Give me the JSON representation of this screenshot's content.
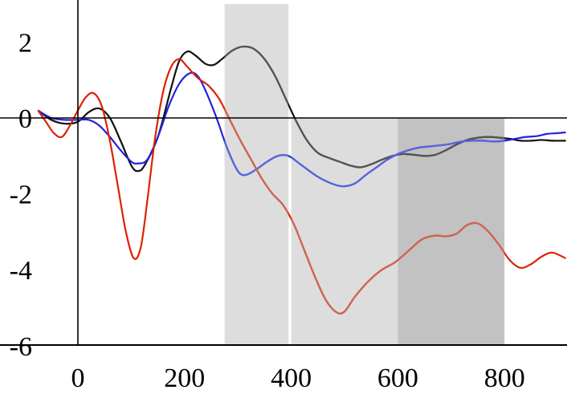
{
  "chart_data": {
    "type": "line",
    "title": "",
    "xlabel": "",
    "ylabel": "",
    "xlim": [
      -75,
      915
    ],
    "ylim": [
      -6,
      3
    ],
    "x_ticks": [
      0,
      200,
      400,
      600,
      800
    ],
    "x_tick_labels": [
      "0",
      "200",
      "400",
      "600",
      "800"
    ],
    "y_ticks": [
      2,
      0,
      -2,
      -4,
      -6
    ],
    "y_tick_labels": [
      "2",
      "0",
      "-2",
      "-4",
      "-6"
    ],
    "grid": false,
    "zero_line": true,
    "shaded_regions": [
      {
        "x0": 275,
        "x1": 395,
        "y0": -6,
        "y1": 3,
        "color": "#dddddd"
      },
      {
        "x0": 400,
        "x1": 600,
        "y0": -6,
        "y1": 0,
        "color": "#dddddd"
      },
      {
        "x0": 600,
        "x1": 800,
        "y0": -6,
        "y1": 0,
        "color": "#c2c2c2"
      }
    ],
    "series": [
      {
        "color": "#111111",
        "shaded_color": "#555555",
        "points": [
          [
            -75,
            0.2
          ],
          [
            -50,
            -0.05
          ],
          [
            -25,
            -0.15
          ],
          [
            0,
            -0.1
          ],
          [
            20,
            0.15
          ],
          [
            40,
            0.25
          ],
          [
            60,
            0.0
          ],
          [
            80,
            -0.6
          ],
          [
            100,
            -1.25
          ],
          [
            112,
            -1.4
          ],
          [
            125,
            -1.25
          ],
          [
            150,
            -0.5
          ],
          [
            175,
            0.8
          ],
          [
            190,
            1.5
          ],
          [
            205,
            1.75
          ],
          [
            220,
            1.65
          ],
          [
            240,
            1.42
          ],
          [
            255,
            1.4
          ],
          [
            270,
            1.55
          ],
          [
            290,
            1.78
          ],
          [
            310,
            1.88
          ],
          [
            330,
            1.82
          ],
          [
            350,
            1.55
          ],
          [
            370,
            1.1
          ],
          [
            390,
            0.5
          ],
          [
            410,
            -0.1
          ],
          [
            430,
            -0.6
          ],
          [
            450,
            -0.92
          ],
          [
            470,
            -1.05
          ],
          [
            490,
            -1.15
          ],
          [
            510,
            -1.25
          ],
          [
            530,
            -1.3
          ],
          [
            550,
            -1.22
          ],
          [
            570,
            -1.1
          ],
          [
            590,
            -1.0
          ],
          [
            610,
            -0.95
          ],
          [
            630,
            -0.97
          ],
          [
            650,
            -1.0
          ],
          [
            670,
            -0.97
          ],
          [
            690,
            -0.85
          ],
          [
            710,
            -0.7
          ],
          [
            730,
            -0.58
          ],
          [
            750,
            -0.52
          ],
          [
            770,
            -0.5
          ],
          [
            790,
            -0.52
          ],
          [
            810,
            -0.55
          ],
          [
            830,
            -0.6
          ],
          [
            850,
            -0.6
          ],
          [
            870,
            -0.58
          ],
          [
            890,
            -0.6
          ],
          [
            915,
            -0.6
          ]
        ]
      },
      {
        "color": "#2222dd",
        "shaded_color": "#5566dd",
        "points": [
          [
            -75,
            0.2
          ],
          [
            -50,
            0.0
          ],
          [
            -25,
            -0.05
          ],
          [
            0,
            -0.05
          ],
          [
            20,
            -0.05
          ],
          [
            40,
            -0.2
          ],
          [
            60,
            -0.5
          ],
          [
            80,
            -0.85
          ],
          [
            100,
            -1.15
          ],
          [
            112,
            -1.2
          ],
          [
            130,
            -1.1
          ],
          [
            150,
            -0.5
          ],
          [
            170,
            0.3
          ],
          [
            190,
            0.9
          ],
          [
            210,
            1.18
          ],
          [
            225,
            1.1
          ],
          [
            240,
            0.7
          ],
          [
            260,
            0.0
          ],
          [
            280,
            -0.8
          ],
          [
            300,
            -1.4
          ],
          [
            315,
            -1.5
          ],
          [
            335,
            -1.35
          ],
          [
            355,
            -1.15
          ],
          [
            375,
            -1.0
          ],
          [
            395,
            -1.0
          ],
          [
            420,
            -1.25
          ],
          [
            450,
            -1.55
          ],
          [
            480,
            -1.75
          ],
          [
            500,
            -1.8
          ],
          [
            520,
            -1.72
          ],
          [
            540,
            -1.5
          ],
          [
            560,
            -1.3
          ],
          [
            580,
            -1.1
          ],
          [
            600,
            -0.95
          ],
          [
            620,
            -0.85
          ],
          [
            640,
            -0.78
          ],
          [
            660,
            -0.75
          ],
          [
            680,
            -0.72
          ],
          [
            700,
            -0.68
          ],
          [
            720,
            -0.62
          ],
          [
            740,
            -0.6
          ],
          [
            760,
            -0.6
          ],
          [
            780,
            -0.62
          ],
          [
            800,
            -0.6
          ],
          [
            820,
            -0.55
          ],
          [
            840,
            -0.5
          ],
          [
            860,
            -0.48
          ],
          [
            880,
            -0.42
          ],
          [
            900,
            -0.4
          ],
          [
            915,
            -0.38
          ]
        ]
      },
      {
        "color": "#dd2200",
        "shaded_color": "#cc6655",
        "points": [
          [
            -75,
            0.2
          ],
          [
            -60,
            -0.1
          ],
          [
            -45,
            -0.4
          ],
          [
            -30,
            -0.5
          ],
          [
            -15,
            -0.2
          ],
          [
            0,
            0.2
          ],
          [
            15,
            0.55
          ],
          [
            30,
            0.65
          ],
          [
            45,
            0.3
          ],
          [
            60,
            -0.6
          ],
          [
            75,
            -1.8
          ],
          [
            90,
            -3.0
          ],
          [
            105,
            -3.7
          ],
          [
            118,
            -3.4
          ],
          [
            130,
            -2.2
          ],
          [
            145,
            -0.5
          ],
          [
            160,
            0.7
          ],
          [
            175,
            1.35
          ],
          [
            190,
            1.55
          ],
          [
            205,
            1.35
          ],
          [
            225,
            1.05
          ],
          [
            245,
            0.85
          ],
          [
            265,
            0.5
          ],
          [
            285,
            -0.05
          ],
          [
            305,
            -0.6
          ],
          [
            325,
            -1.1
          ],
          [
            345,
            -1.6
          ],
          [
            365,
            -2.0
          ],
          [
            385,
            -2.3
          ],
          [
            405,
            -2.8
          ],
          [
            425,
            -3.5
          ],
          [
            445,
            -4.2
          ],
          [
            465,
            -4.8
          ],
          [
            485,
            -5.12
          ],
          [
            500,
            -5.1
          ],
          [
            520,
            -4.7
          ],
          [
            545,
            -4.3
          ],
          [
            570,
            -4.0
          ],
          [
            595,
            -3.8
          ],
          [
            620,
            -3.5
          ],
          [
            645,
            -3.2
          ],
          [
            670,
            -3.1
          ],
          [
            690,
            -3.12
          ],
          [
            710,
            -3.05
          ],
          [
            730,
            -2.82
          ],
          [
            750,
            -2.78
          ],
          [
            770,
            -3.0
          ],
          [
            790,
            -3.35
          ],
          [
            810,
            -3.75
          ],
          [
            830,
            -3.95
          ],
          [
            850,
            -3.85
          ],
          [
            870,
            -3.65
          ],
          [
            890,
            -3.55
          ],
          [
            915,
            -3.7
          ]
        ]
      }
    ]
  }
}
